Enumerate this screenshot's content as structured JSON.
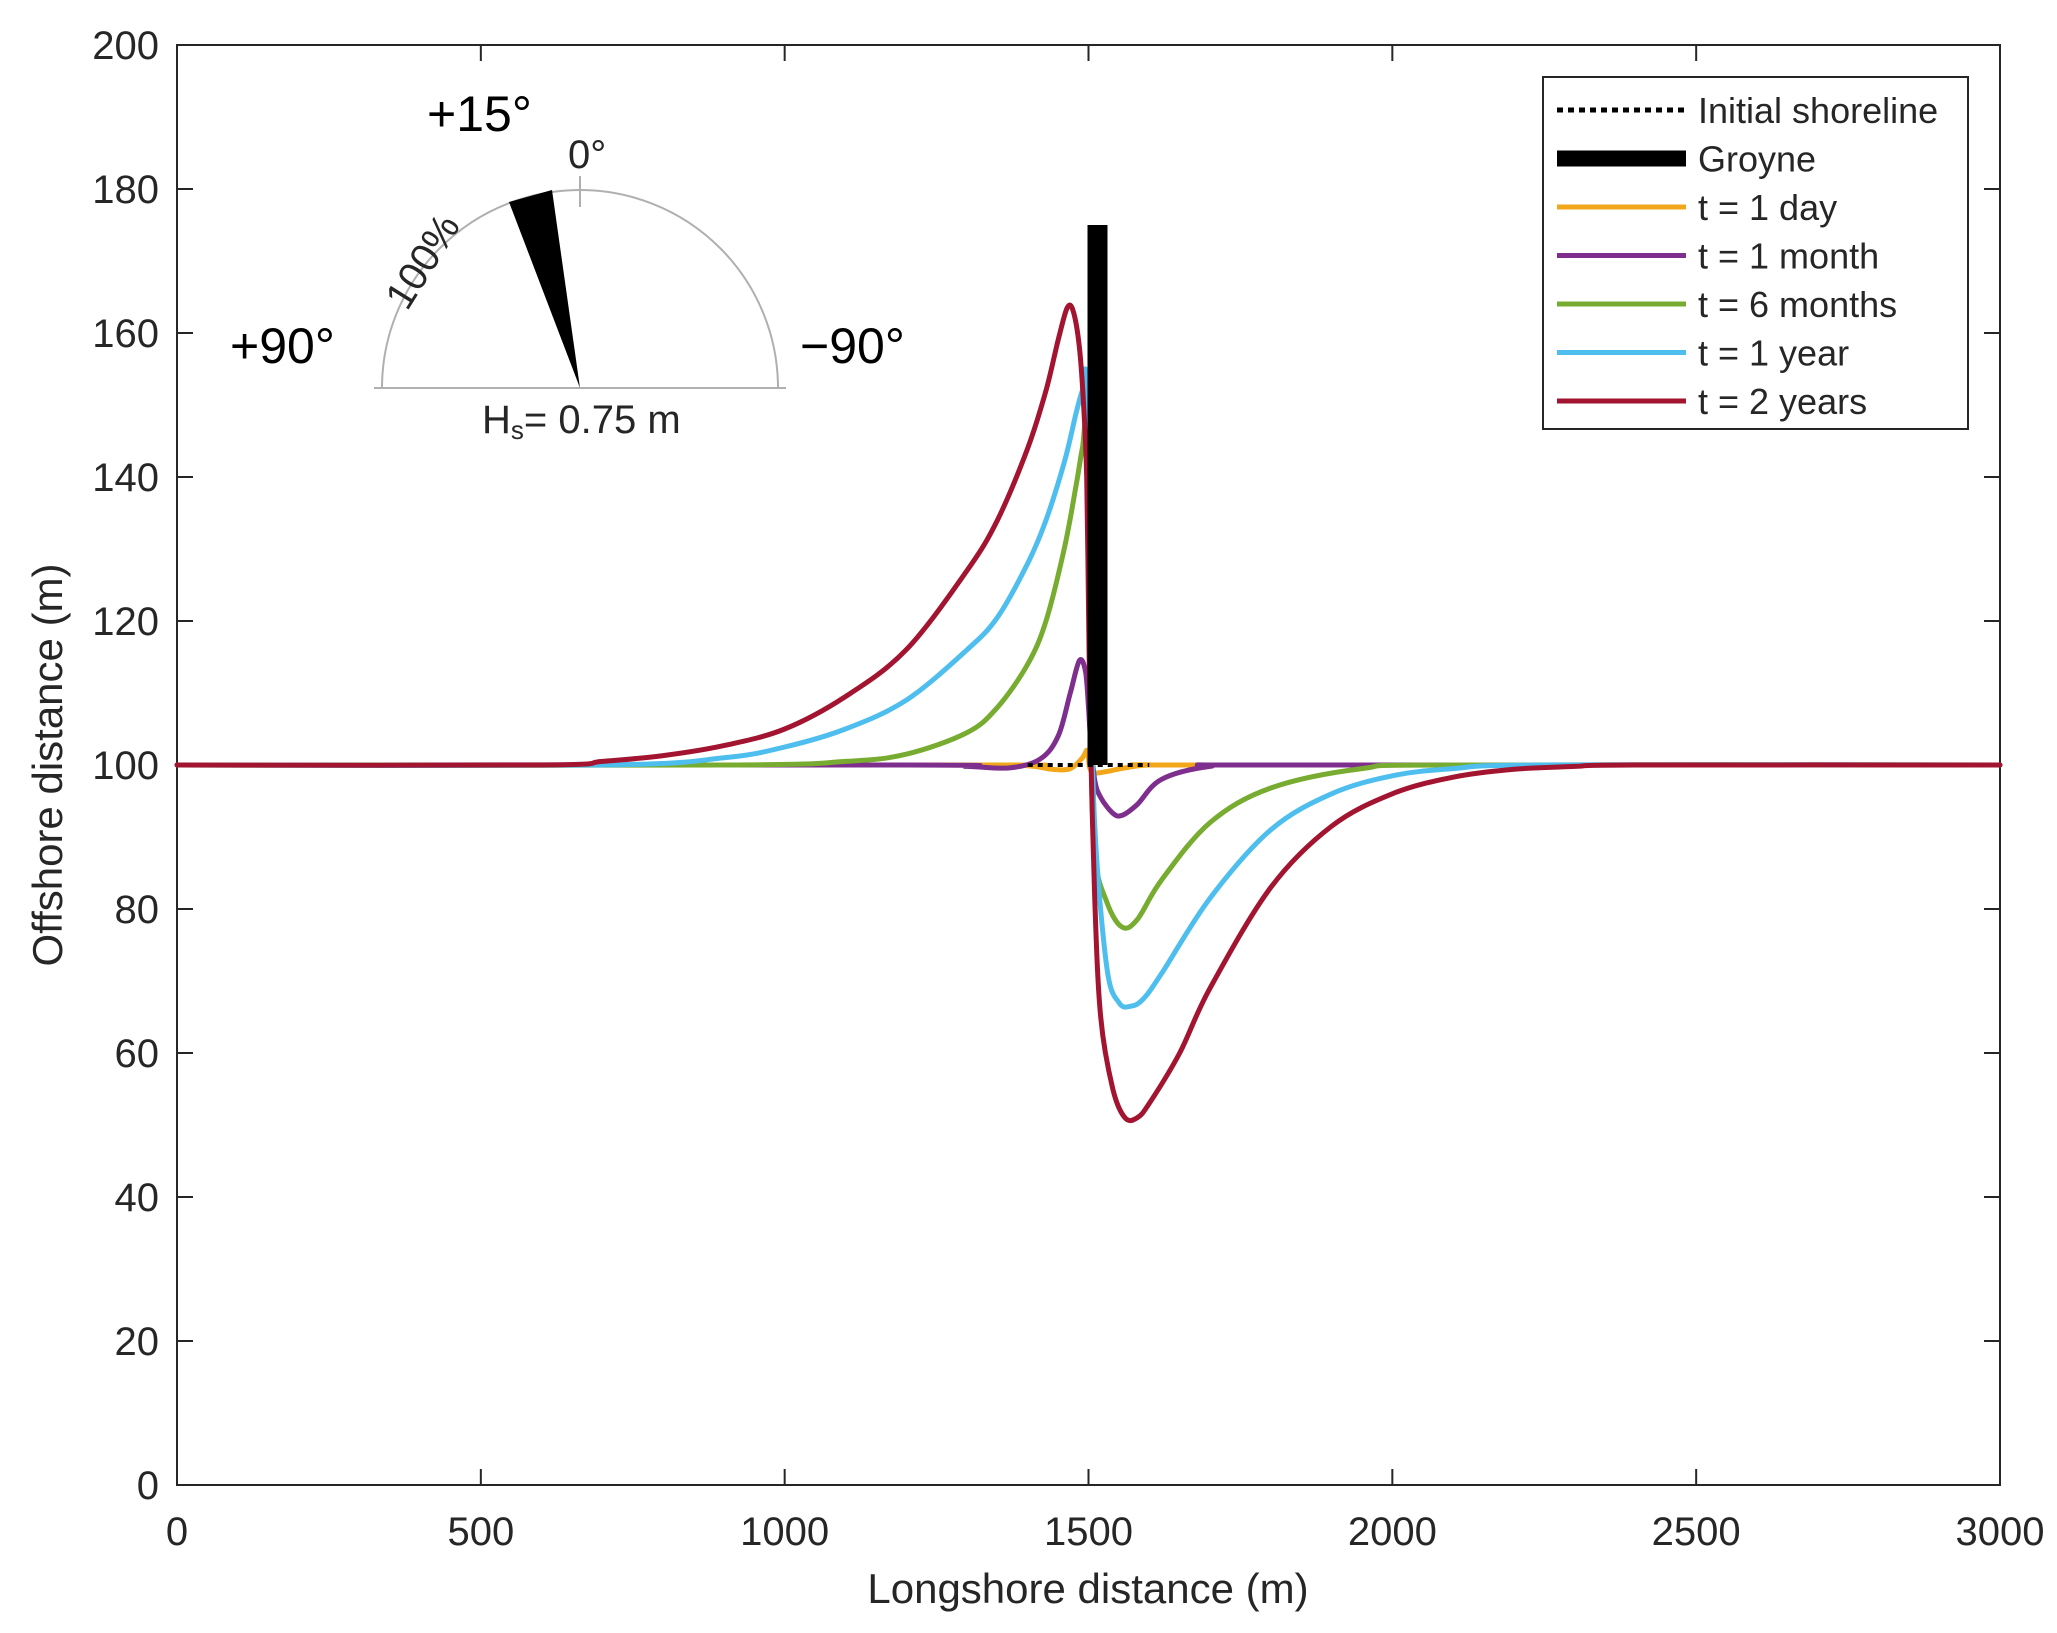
{
  "chart_data": {
    "type": "line",
    "xlabel": "Longshore distance (m)",
    "ylabel": "Offshore distance (m)",
    "xlim": [
      0,
      3000
    ],
    "ylim": [
      0,
      200
    ],
    "xticks": [
      0,
      500,
      1000,
      1500,
      2000,
      2500,
      3000
    ],
    "yticks": [
      0,
      20,
      40,
      60,
      80,
      100,
      120,
      140,
      160,
      180,
      200
    ],
    "grid": false,
    "legend_position": "top-right",
    "legend": [
      "Initial shoreline",
      "Groyne",
      "t = 1 day",
      "t = 1 month",
      "t = 6 months",
      "t = 1 year",
      "t = 2 years"
    ],
    "groyne": {
      "x": 1500,
      "y_from": 100,
      "y_to": 175,
      "color": "#000000"
    },
    "series": [
      {
        "name": "Initial shoreline",
        "style": "dotted",
        "color": "#000000",
        "x": [
          1400,
          1600
        ],
        "y": [
          100,
          100
        ]
      },
      {
        "name": "t = 1 day",
        "color": "#F2A71B",
        "x": [
          0,
          1300,
          1400,
          1440,
          1470,
          1490,
          1498,
          1502,
          1510,
          1530,
          1560,
          1600,
          1700,
          3000
        ],
        "y": [
          100,
          100,
          99.9,
          99.4,
          99.5,
          101,
          102,
          99.6,
          98.9,
          99.1,
          99.6,
          100,
          100,
          100
        ]
      },
      {
        "name": "t = 1 month",
        "color": "#7E2F8E",
        "x": [
          0,
          1200,
          1300,
          1370,
          1420,
          1450,
          1470,
          1485,
          1495,
          1500,
          1503,
          1510,
          1520,
          1540,
          1555,
          1580,
          1620,
          1700,
          1800,
          3000
        ],
        "y": [
          100,
          100,
          99.8,
          99.6,
          100.8,
          104,
          110,
          114.5,
          113,
          108,
          104,
          98,
          95.5,
          93.3,
          93,
          94.5,
          98,
          99.8,
          100,
          100
        ]
      },
      {
        "name": "t = 6 months",
        "color": "#77AC30",
        "x": [
          0,
          900,
          1100,
          1200,
          1300,
          1350,
          1400,
          1430,
          1460,
          1480,
          1490,
          1497,
          1503,
          1510,
          1530,
          1555,
          1580,
          1620,
          1700,
          1800,
          1950,
          2100,
          3000
        ],
        "y": [
          100,
          100,
          100.5,
          101.5,
          104.5,
          108,
          114,
          120,
          130,
          139,
          144,
          145,
          108,
          88,
          81,
          77.5,
          78.5,
          84,
          92,
          96.8,
          99.5,
          100,
          100
        ]
      },
      {
        "name": "t = 1 year",
        "color": "#4DBEEE",
        "x": [
          0,
          700,
          900,
          1000,
          1100,
          1200,
          1300,
          1350,
          1400,
          1430,
          1460,
          1480,
          1490,
          1497,
          1503,
          1510,
          1530,
          1550,
          1570,
          1590,
          1620,
          1700,
          1800,
          1900,
          2000,
          2100,
          2250,
          3000
        ],
        "y": [
          100,
          100,
          101,
          102.5,
          105,
          109,
          116,
          120.5,
          128,
          134,
          142,
          149,
          152,
          152.5,
          118,
          92,
          72,
          67,
          66.5,
          67.5,
          71,
          81.5,
          91,
          96,
          98.5,
          99.5,
          100,
          100
        ]
      },
      {
        "name": "t = 2 years",
        "color": "#A2142F",
        "x": [
          0,
          600,
          700,
          800,
          900,
          1000,
          1100,
          1200,
          1300,
          1350,
          1400,
          1430,
          1450,
          1465,
          1475,
          1485,
          1492,
          1497,
          1500,
          1503,
          1510,
          1520,
          1540,
          1560,
          1580,
          1600,
          1650,
          1700,
          1800,
          1900,
          2000,
          2100,
          2200,
          2300,
          2400,
          3000
        ],
        "y": [
          100,
          100,
          100.5,
          101.3,
          102.7,
          105,
          109.5,
          116,
          127,
          134,
          144,
          152,
          159,
          163.5,
          163,
          158,
          150,
          140,
          122,
          105,
          82,
          65,
          55,
          51,
          51,
          53,
          60,
          69,
          83,
          91.5,
          96,
          98.3,
          99.4,
          99.8,
          100,
          100
        ]
      }
    ],
    "inset": {
      "top_label": "+15°",
      "zero_label": "0°",
      "left_label": "+90°",
      "right_label": "−90°",
      "radius_label": "100%",
      "hs_label_main": "H",
      "hs_label_sub": "s",
      "hs_label_rest": "= 0.75 m",
      "wave_direction_deg": 15,
      "frequency_percent": 100,
      "hs_m": 0.75
    }
  }
}
